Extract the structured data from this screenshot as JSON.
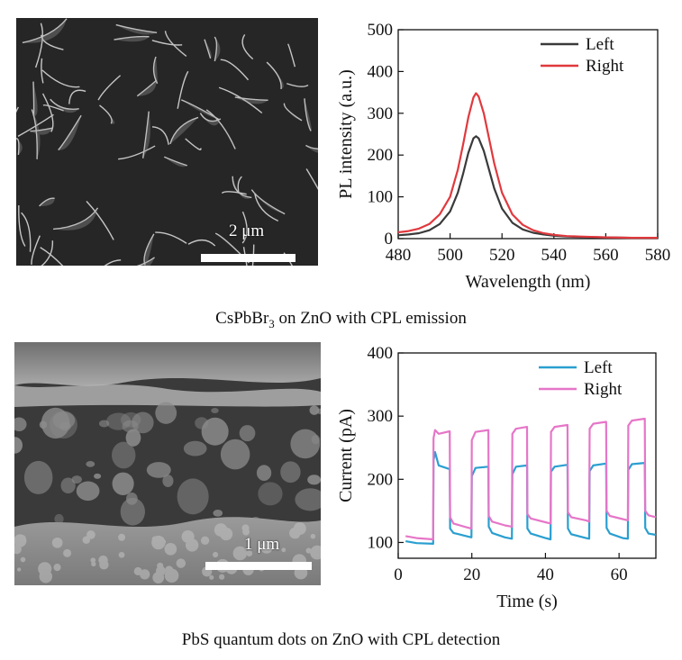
{
  "colors": {
    "left_top": "#3a3a3a",
    "right_top": "#e0393e",
    "left_bottom": "#2a9fd0",
    "right_bottom": "#e676c8"
  },
  "top": {
    "sem_scale_label": "2 μm",
    "caption_pre": "CsPbBr",
    "caption_sub": "3",
    "caption_post": " on ZnO with CPL emission"
  },
  "bottom": {
    "sem_scale_label": "1 μm",
    "caption": "PbS quantum dots on ZnO with CPL detection"
  },
  "chart_data": [
    {
      "type": "line",
      "xlabel": "Wavelength (nm)",
      "ylabel": "PL intensity (a.u.)",
      "xlim": [
        480,
        580
      ],
      "ylim": [
        0,
        500
      ],
      "xticks": [
        480,
        500,
        520,
        540,
        560,
        580
      ],
      "yticks": [
        0,
        100,
        200,
        300,
        400,
        500
      ],
      "legend": "top-right",
      "series": [
        {
          "name": "Left",
          "color": "#3a3a3a",
          "x": [
            480,
            484,
            488,
            492,
            496,
            500,
            503,
            505,
            507,
            509,
            510,
            511,
            513,
            515,
            517,
            520,
            524,
            528,
            532,
            536,
            540,
            545,
            550,
            560,
            570,
            580
          ],
          "y": [
            8,
            10,
            13,
            20,
            35,
            65,
            110,
            155,
            205,
            240,
            245,
            240,
            210,
            165,
            120,
            72,
            38,
            22,
            14,
            10,
            7,
            5,
            4,
            3,
            2,
            2
          ]
        },
        {
          "name": "Right",
          "color": "#e0393e",
          "x": [
            480,
            484,
            488,
            492,
            496,
            500,
            503,
            505,
            507,
            509,
            510,
            511,
            513,
            515,
            517,
            520,
            524,
            528,
            532,
            536,
            540,
            545,
            550,
            560,
            570,
            580
          ],
          "y": [
            15,
            18,
            24,
            35,
            58,
            100,
            165,
            225,
            290,
            338,
            348,
            340,
            300,
            240,
            180,
            110,
            58,
            33,
            20,
            13,
            9,
            6,
            5,
            3,
            2,
            2
          ]
        }
      ]
    },
    {
      "type": "line",
      "xlabel": "Time (s)",
      "ylabel": "Current (pA)",
      "xlim": [
        0,
        70
      ],
      "ylim": [
        75,
        400
      ],
      "xticks": [
        0,
        20,
        40,
        60
      ],
      "yticks": [
        100,
        200,
        300,
        400
      ],
      "legend": "top-right",
      "series": [
        {
          "name": "Left",
          "color": "#2a9fd0",
          "x": [
            2,
            5,
            9.5,
            9.6,
            10,
            11,
            14,
            14.1,
            15,
            18.5,
            19.9,
            20,
            21,
            24.5,
            24.6,
            25.5,
            29,
            30.9,
            31,
            32,
            35,
            35.1,
            36,
            40,
            41.4,
            41.5,
            42.5,
            46,
            46.1,
            47,
            51,
            51.9,
            52,
            53,
            56.5,
            56.6,
            57.5,
            61,
            62.4,
            62.5,
            63.5,
            67,
            67.1,
            68,
            70
          ],
          "y": [
            102,
            99,
            98,
            230,
            243,
            222,
            216,
            122,
            115,
            110,
            108,
            205,
            218,
            220,
            125,
            115,
            108,
            106,
            208,
            220,
            222,
            122,
            114,
            107,
            105,
            212,
            220,
            223,
            122,
            113,
            107,
            106,
            213,
            222,
            225,
            123,
            114,
            107,
            106,
            215,
            224,
            226,
            123,
            114,
            112
          ]
        },
        {
          "name": "Right",
          "color": "#e676c8",
          "x": [
            2,
            5,
            9.5,
            9.6,
            10,
            11,
            14,
            14.1,
            15,
            18.5,
            19.9,
            20,
            21,
            24.5,
            24.6,
            25.5,
            29,
            30.9,
            31,
            32,
            35,
            35.1,
            36,
            40,
            41.4,
            41.5,
            42.5,
            46,
            46.1,
            47,
            51,
            51.9,
            52,
            53,
            56.5,
            56.6,
            57.5,
            61,
            62.4,
            62.5,
            63.5,
            67,
            67.1,
            68,
            70
          ],
          "y": [
            110,
            107,
            105,
            265,
            278,
            272,
            276,
            140,
            130,
            124,
            122,
            262,
            275,
            278,
            142,
            133,
            127,
            125,
            272,
            280,
            283,
            145,
            138,
            132,
            130,
            275,
            283,
            286,
            148,
            140,
            135,
            133,
            280,
            288,
            291,
            150,
            142,
            137,
            135,
            285,
            293,
            296,
            150,
            143,
            140
          ]
        }
      ]
    }
  ]
}
